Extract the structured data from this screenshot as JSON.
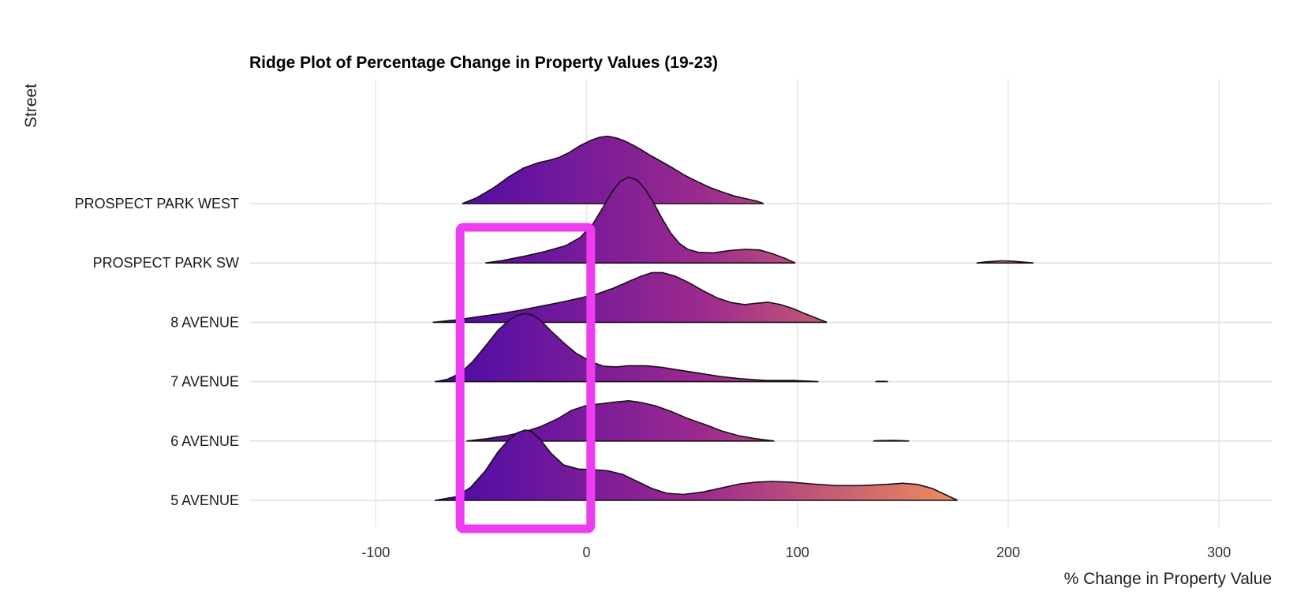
{
  "chart_data": {
    "type": "ridgeline",
    "title": "Ridge Plot of Percentage Change in Property Values (19-23)",
    "xlabel": "% Change in Property Value",
    "ylabel": "Street",
    "xlim": [
      -160,
      325
    ],
    "x_ticks": [
      -100,
      0,
      100,
      200,
      300
    ],
    "grid": true,
    "colors": {
      "low": "#4b0aa6",
      "mid": "#9c2a8e",
      "high": "#f0915a",
      "outline": "#1a0d1a",
      "highlight": "#ee3df0"
    },
    "gradient_range": [
      -70,
      180
    ],
    "series": [
      {
        "name": "5 AVENUE",
        "peak_height": 2.0,
        "segments": [
          [
            [
              -72,
              0
            ],
            [
              -62,
              0.06
            ],
            [
              -55,
              0.22
            ],
            [
              -48,
              0.5
            ],
            [
              -42,
              0.82
            ],
            [
              -37,
              1.02
            ],
            [
              -33,
              1.14
            ],
            [
              -29,
              1.19
            ],
            [
              -26,
              1.16
            ],
            [
              -22,
              1.03
            ],
            [
              -17,
              0.8
            ],
            [
              -11,
              0.6
            ],
            [
              -4,
              0.53
            ],
            [
              2,
              0.52
            ],
            [
              10,
              0.5
            ],
            [
              17,
              0.44
            ],
            [
              24,
              0.32
            ],
            [
              31,
              0.2
            ],
            [
              38,
              0.12
            ],
            [
              46,
              0.1
            ],
            [
              55,
              0.14
            ],
            [
              64,
              0.21
            ],
            [
              73,
              0.28
            ],
            [
              81,
              0.31
            ],
            [
              88,
              0.32
            ],
            [
              96,
              0.31
            ],
            [
              106,
              0.28
            ],
            [
              118,
              0.25
            ],
            [
              130,
              0.25
            ],
            [
              142,
              0.27
            ],
            [
              150,
              0.29
            ],
            [
              157,
              0.27
            ],
            [
              164,
              0.2
            ],
            [
              170,
              0.1
            ],
            [
              176,
              0
            ]
          ]
        ]
      },
      {
        "name": "6 AVENUE",
        "peak_height": 2.0,
        "segments": [
          [
            [
              -57,
              0
            ],
            [
              -47,
              0.04
            ],
            [
              -38,
              0.09
            ],
            [
              -30,
              0.15
            ],
            [
              -22,
              0.24
            ],
            [
              -14,
              0.37
            ],
            [
              -7,
              0.52
            ],
            [
              0,
              0.6
            ],
            [
              7,
              0.63
            ],
            [
              14,
              0.66
            ],
            [
              20,
              0.68
            ],
            [
              26,
              0.65
            ],
            [
              33,
              0.59
            ],
            [
              40,
              0.5
            ],
            [
              48,
              0.38
            ],
            [
              56,
              0.28
            ],
            [
              64,
              0.17
            ],
            [
              72,
              0.09
            ],
            [
              80,
              0.04
            ],
            [
              89,
              0
            ]
          ],
          [
            [
              136,
              0
            ],
            [
              137,
              0.005
            ],
            [
              145,
              0.01
            ],
            [
              150,
              0.005
            ],
            [
              153,
              0
            ]
          ]
        ]
      },
      {
        "name": "7 AVENUE",
        "peak_height": 2.0,
        "segments": [
          [
            [
              -72,
              0
            ],
            [
              -66,
              0.04
            ],
            [
              -60,
              0.14
            ],
            [
              -54,
              0.34
            ],
            [
              -48,
              0.6
            ],
            [
              -42,
              0.87
            ],
            [
              -37,
              1.03
            ],
            [
              -33,
              1.12
            ],
            [
              -29,
              1.15
            ],
            [
              -26,
              1.13
            ],
            [
              -22,
              1.04
            ],
            [
              -17,
              0.86
            ],
            [
              -11,
              0.66
            ],
            [
              -5,
              0.48
            ],
            [
              2,
              0.34
            ],
            [
              8,
              0.26
            ],
            [
              14,
              0.25
            ],
            [
              20,
              0.27
            ],
            [
              28,
              0.27
            ],
            [
              36,
              0.24
            ],
            [
              45,
              0.19
            ],
            [
              54,
              0.14
            ],
            [
              63,
              0.09
            ],
            [
              73,
              0.05
            ],
            [
              85,
              0.02
            ],
            [
              98,
              0.02
            ],
            [
              110,
              0
            ]
          ],
          [
            [
              137,
              0
            ],
            [
              138,
              0.005
            ],
            [
              141,
              0.006
            ],
            [
              143,
              0
            ]
          ]
        ]
      },
      {
        "name": "8 AVENUE",
        "peak_height": 2.0,
        "segments": [
          [
            [
              -73,
              0
            ],
            [
              -62,
              0.04
            ],
            [
              -52,
              0.09
            ],
            [
              -42,
              0.14
            ],
            [
              -32,
              0.2
            ],
            [
              -22,
              0.27
            ],
            [
              -12,
              0.34
            ],
            [
              -3,
              0.41
            ],
            [
              5,
              0.48
            ],
            [
              13,
              0.58
            ],
            [
              20,
              0.69
            ],
            [
              26,
              0.78
            ],
            [
              31,
              0.84
            ],
            [
              36,
              0.84
            ],
            [
              42,
              0.78
            ],
            [
              48,
              0.68
            ],
            [
              55,
              0.54
            ],
            [
              62,
              0.41
            ],
            [
              69,
              0.33
            ],
            [
              75,
              0.3
            ],
            [
              80,
              0.32
            ],
            [
              86,
              0.34
            ],
            [
              92,
              0.3
            ],
            [
              98,
              0.23
            ],
            [
              104,
              0.14
            ],
            [
              109,
              0.07
            ],
            [
              114,
              0
            ]
          ]
        ]
      },
      {
        "name": "PROSPECT PARK SW",
        "peak_height": 2.0,
        "segments": [
          [
            [
              -48,
              0
            ],
            [
              -40,
              0.04
            ],
            [
              -30,
              0.11
            ],
            [
              -20,
              0.19
            ],
            [
              -10,
              0.29
            ],
            [
              -3,
              0.43
            ],
            [
              3,
              0.66
            ],
            [
              8,
              0.95
            ],
            [
              12,
              1.2
            ],
            [
              16,
              1.38
            ],
            [
              20,
              1.45
            ],
            [
              24,
              1.4
            ],
            [
              28,
              1.24
            ],
            [
              32,
              1.0
            ],
            [
              36,
              0.74
            ],
            [
              40,
              0.5
            ],
            [
              44,
              0.33
            ],
            [
              48,
              0.23
            ],
            [
              53,
              0.18
            ],
            [
              60,
              0.17
            ],
            [
              68,
              0.21
            ],
            [
              75,
              0.23
            ],
            [
              82,
              0.22
            ],
            [
              88,
              0.16
            ],
            [
              94,
              0.08
            ],
            [
              99,
              0
            ]
          ],
          [
            [
              185,
              0
            ],
            [
              190,
              0.02
            ],
            [
              197,
              0.035
            ],
            [
              202,
              0.03
            ],
            [
              208,
              0.012
            ],
            [
              212,
              0
            ]
          ]
        ]
      },
      {
        "name": "PROSPECT PARK WEST",
        "peak_height": 2.0,
        "segments": [
          [
            [
              -59,
              0
            ],
            [
              -52,
              0.1
            ],
            [
              -44,
              0.27
            ],
            [
              -37,
              0.45
            ],
            [
              -30,
              0.6
            ],
            [
              -23,
              0.69
            ],
            [
              -18,
              0.73
            ],
            [
              -13,
              0.78
            ],
            [
              -8,
              0.87
            ],
            [
              -3,
              0.98
            ],
            [
              2,
              1.07
            ],
            [
              6,
              1.12
            ],
            [
              10,
              1.14
            ],
            [
              14,
              1.11
            ],
            [
              18,
              1.06
            ],
            [
              22,
              0.99
            ],
            [
              26,
              0.91
            ],
            [
              30,
              0.82
            ],
            [
              35,
              0.72
            ],
            [
              40,
              0.62
            ],
            [
              46,
              0.49
            ],
            [
              52,
              0.38
            ],
            [
              58,
              0.28
            ],
            [
              64,
              0.2
            ],
            [
              70,
              0.13
            ],
            [
              76,
              0.08
            ],
            [
              81,
              0.04
            ],
            [
              84,
              0
            ]
          ]
        ]
      }
    ],
    "highlight_box": {
      "x": [
        -60,
        2
      ],
      "y_from": "PROSPECT PARK WEST",
      "y_to": "below 5 AVENUE"
    }
  }
}
